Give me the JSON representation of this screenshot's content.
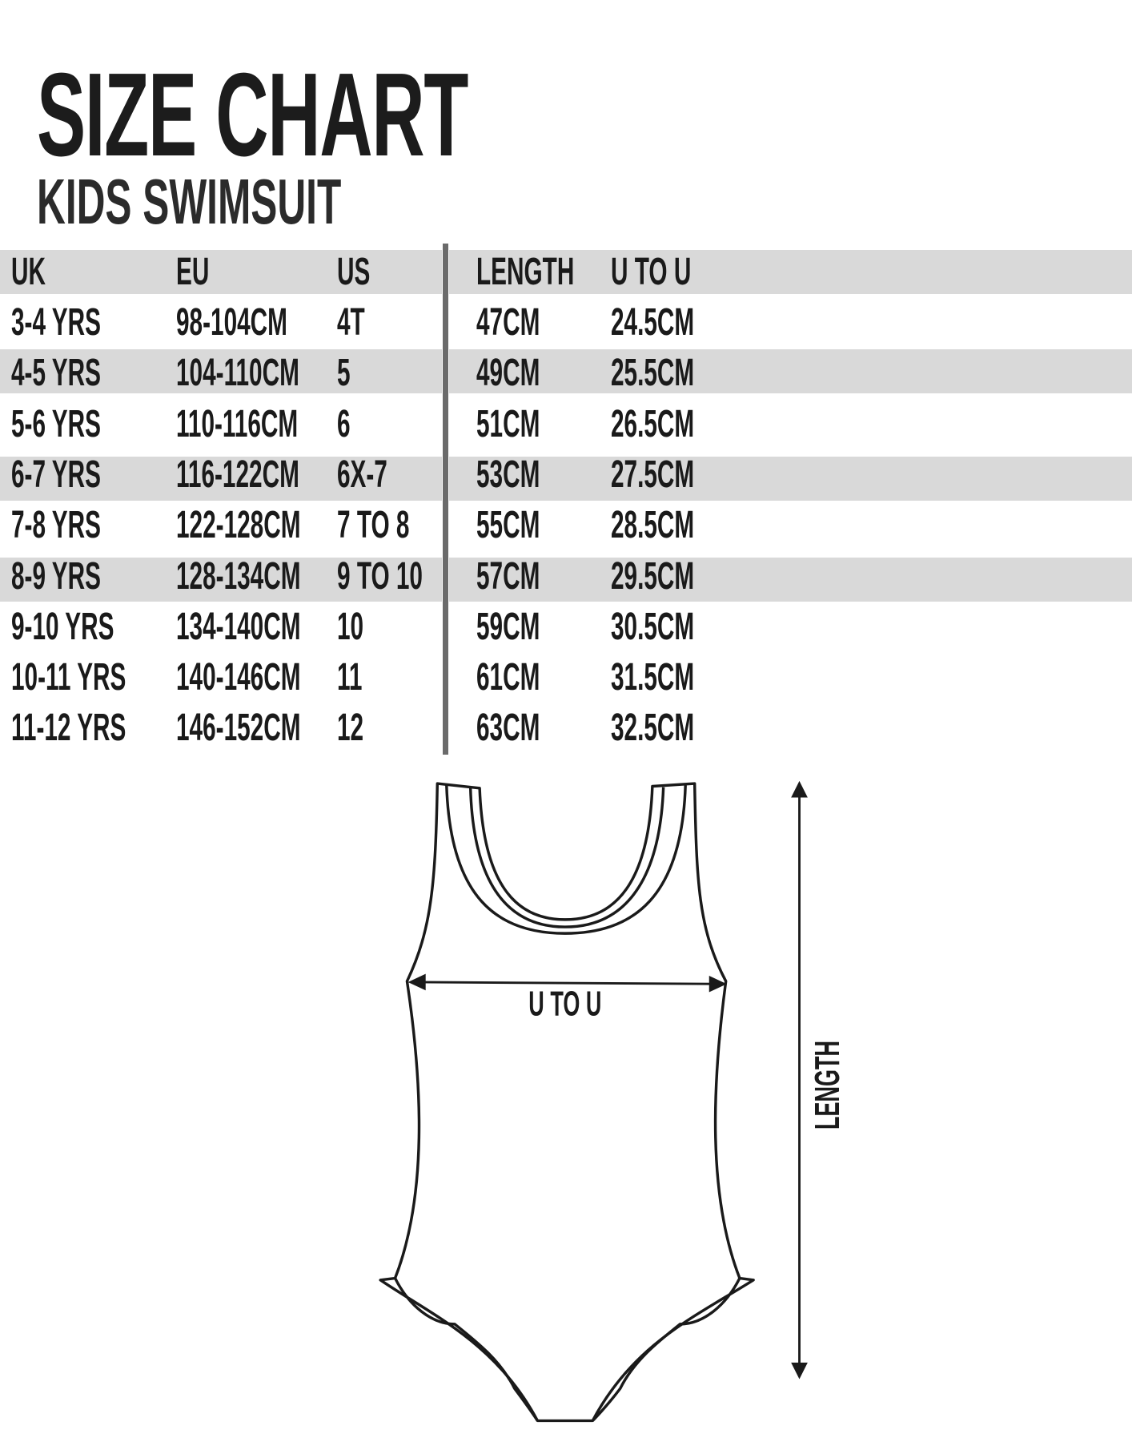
{
  "title": "SIZE CHART",
  "subtitle": "KIDS SWIMSUIT",
  "table": {
    "headers": [
      "UK",
      "EU",
      "US",
      "LENGTH",
      "U TO U"
    ],
    "rows": [
      [
        "3-4 YRS",
        "98-104CM",
        "4T",
        "47CM",
        "24.5CM"
      ],
      [
        "4-5 YRS",
        "104-110CM",
        "5",
        "49CM",
        "25.5CM"
      ],
      [
        "5-6 YRS",
        "110-116CM",
        "6",
        "51CM",
        "26.5CM"
      ],
      [
        "6-7 YRS",
        "116-122CM",
        "6X-7",
        "53CM",
        "27.5CM"
      ],
      [
        "7-8 YRS",
        "122-128CM",
        "7 TO 8",
        "55CM",
        "28.5CM"
      ],
      [
        "8-9 YRS",
        "128-134CM",
        "9 TO 10",
        "57CM",
        "29.5CM"
      ],
      [
        "9-10 YRS",
        "134-140CM",
        "10",
        "59CM",
        "30.5CM"
      ],
      [
        "10-11 YRS",
        "140-146CM",
        "11",
        "61CM",
        "31.5CM"
      ],
      [
        "11-12 YRS",
        "146-152CM",
        "12",
        "63CM",
        "32.5CM"
      ]
    ]
  },
  "diagram": {
    "width_label": "U TO U",
    "length_label": "LENGTH"
  },
  "colors": {
    "band": "#d9d9d9",
    "divider": "#6b6b6b",
    "text": "#1a1a1a"
  }
}
